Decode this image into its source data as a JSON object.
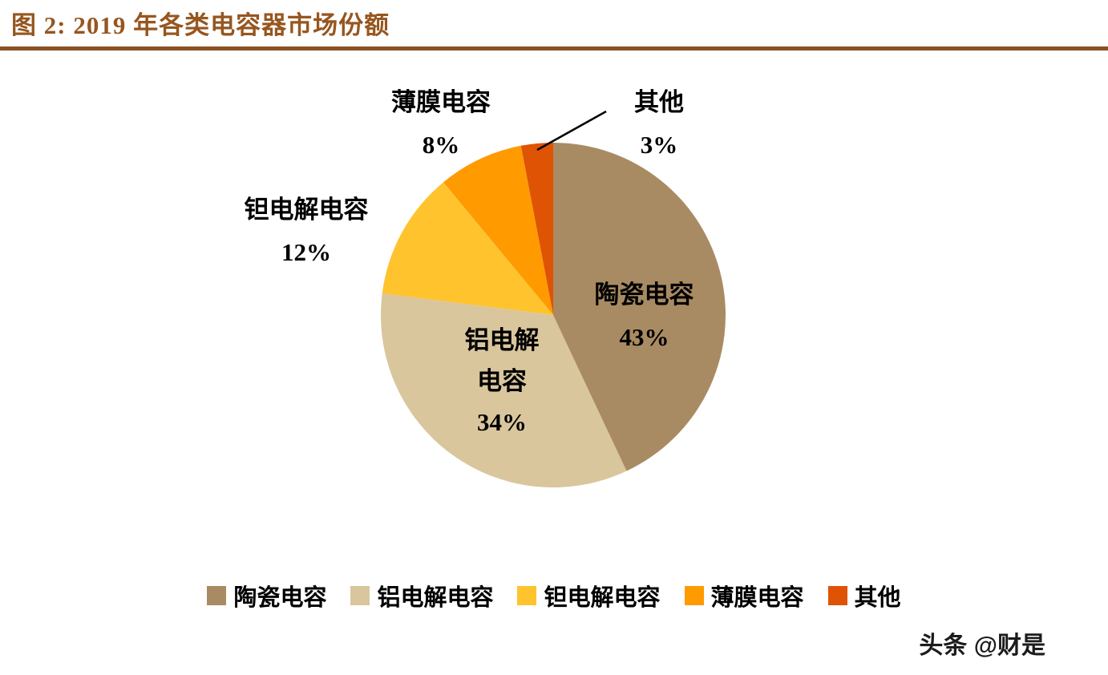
{
  "header": {
    "title": "图 2: 2019 年各类电容器市场份额"
  },
  "chart_data": {
    "type": "pie",
    "title": "2019 年各类电容器市场份额",
    "categories": [
      "陶瓷电容",
      "铝电解电容",
      "钽电解电容",
      "薄膜电容",
      "其他"
    ],
    "values": [
      43,
      34,
      12,
      8,
      3
    ],
    "unit": "%",
    "colors": [
      "#a98b63",
      "#d9c69d",
      "#ffc32e",
      "#ff9a00",
      "#df5305"
    ],
    "start_angle_deg": 0,
    "direction": "clockwise",
    "legend_position": "bottom",
    "data_labels": "category + percent"
  },
  "callouts": {
    "ceramic": "陶瓷电容\n43%",
    "aluminum": "铝电解\n电容\n34%",
    "tantalum": "钽电解电容\n12%",
    "film": "薄膜电容\n8%",
    "other": "其他\n3%"
  },
  "watermark": "头条 @财是"
}
